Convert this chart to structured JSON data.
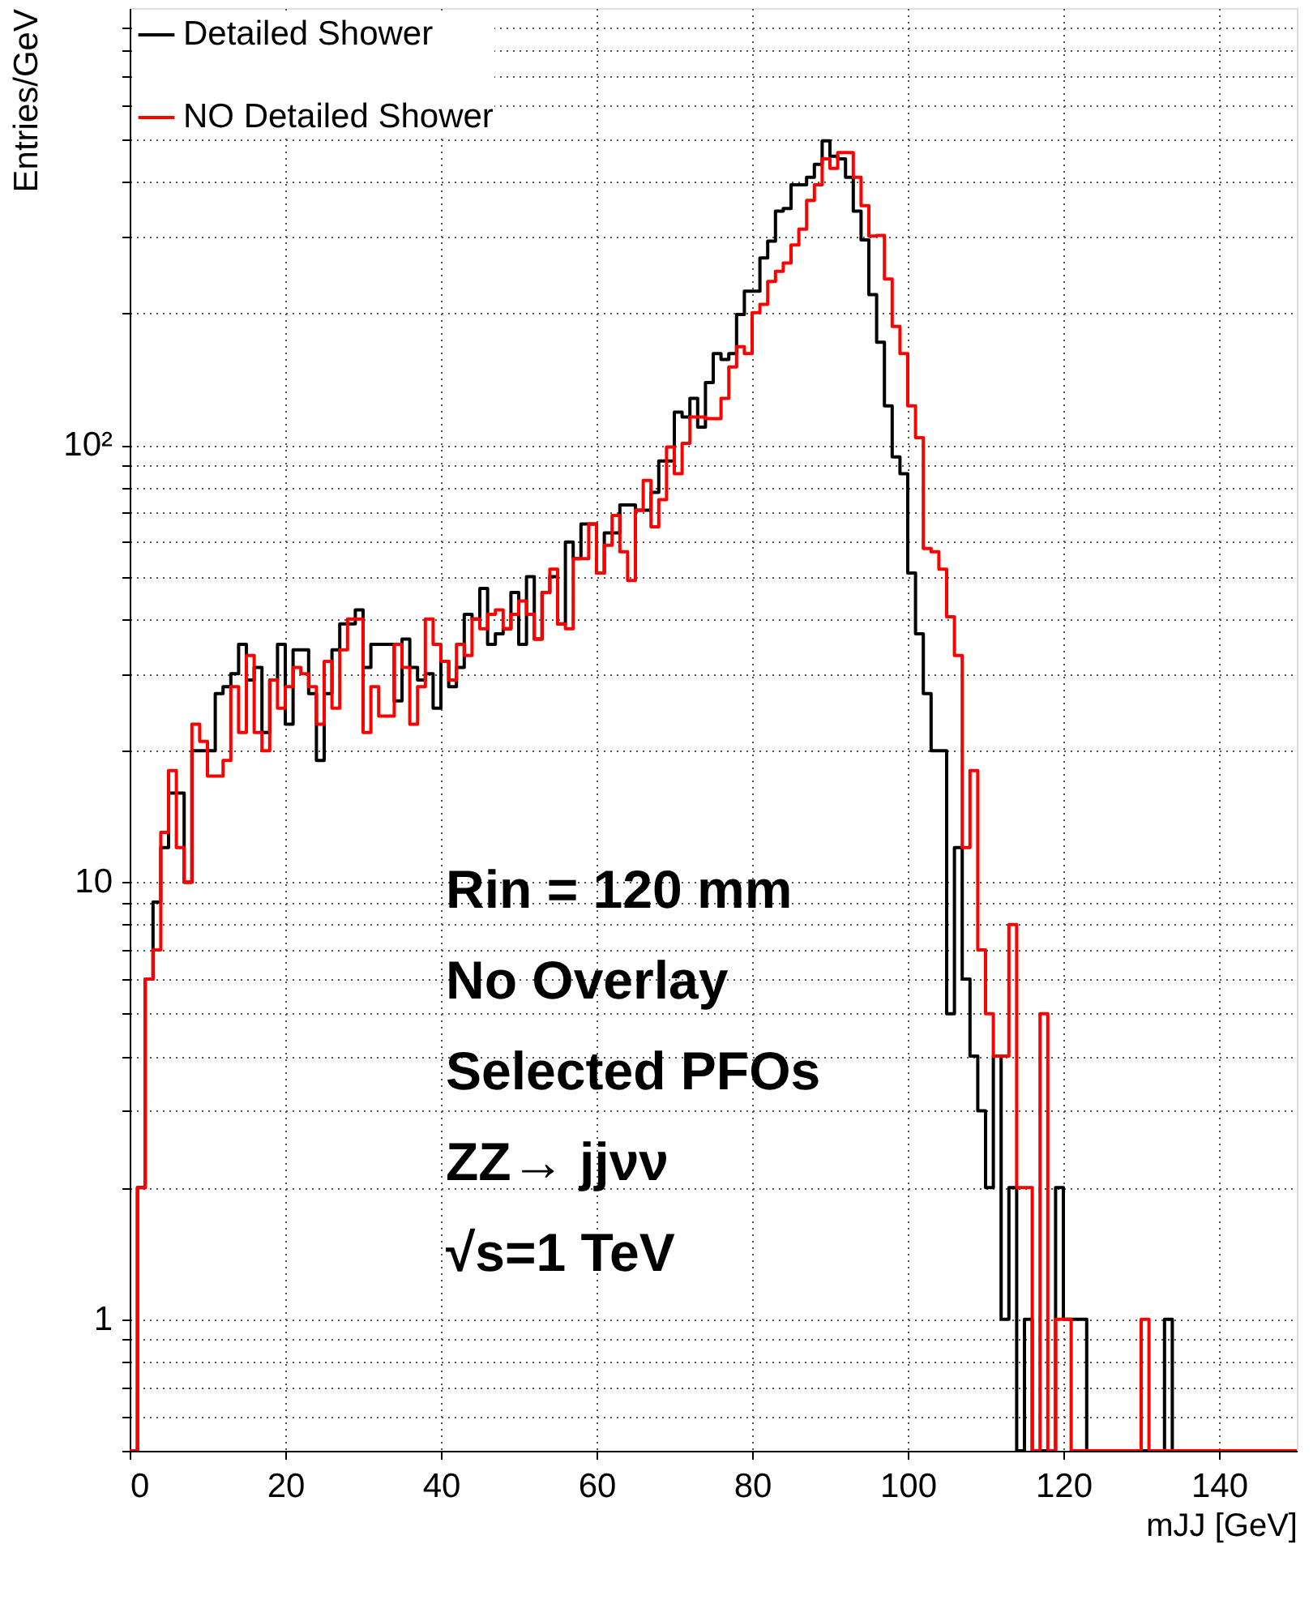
{
  "chart_data": {
    "type": "histogram",
    "xlabel": "mJJ [GeV]",
    "ylabel": "Entries/GeV",
    "bins": [
      0,
      1,
      2,
      3,
      4,
      5,
      6,
      7,
      8,
      9,
      10,
      11,
      12,
      13,
      14,
      15,
      16,
      17,
      18,
      19,
      20,
      21,
      22,
      23,
      24,
      25,
      26,
      27,
      28,
      29,
      30,
      31,
      32,
      33,
      34,
      35,
      36,
      37,
      38,
      39,
      40,
      41,
      42,
      43,
      44,
      45,
      46,
      47,
      48,
      49,
      50,
      51,
      52,
      53,
      54,
      55,
      56,
      57,
      58,
      59,
      60,
      61,
      62,
      63,
      64,
      65,
      66,
      67,
      68,
      69,
      70,
      71,
      72,
      73,
      74,
      75,
      76,
      77,
      78,
      79,
      80,
      81,
      82,
      83,
      84,
      85,
      86,
      87,
      88,
      89,
      90,
      91,
      92,
      93,
      94,
      95,
      96,
      97,
      98,
      99,
      100,
      101,
      102,
      103,
      104,
      105,
      106,
      107,
      108,
      109,
      110,
      111,
      112,
      113,
      114,
      115,
      116,
      117,
      118,
      119,
      120,
      121,
      122,
      123,
      124,
      125,
      126,
      127,
      128,
      129,
      130,
      131,
      132,
      133,
      134,
      135,
      136,
      137,
      138,
      139,
      140,
      141,
      142,
      143,
      144,
      145,
      146,
      147,
      148,
      149,
      150
    ],
    "series": [
      {
        "name": "Detailed Shower",
        "color": "#000000",
        "values": [
          null,
          2,
          6,
          9,
          12,
          16,
          16,
          10,
          20,
          20,
          20,
          27,
          28,
          30,
          35,
          29,
          31,
          22,
          29,
          35,
          23,
          34,
          34,
          27,
          19,
          27,
          34,
          39,
          39,
          42,
          31,
          35,
          35,
          35,
          26,
          36,
          31,
          29,
          30,
          25,
          32,
          28,
          31,
          41,
          40,
          47,
          35,
          37,
          38,
          46,
          35,
          50,
          36,
          46,
          50,
          39,
          60,
          55,
          66,
          66,
          51,
          63,
          63,
          73,
          73,
          71,
          71,
          78,
          92,
          92,
          119,
          116,
          128,
          110,
          139,
          162,
          157,
          162,
          199,
          225,
          225,
          268,
          293,
          343,
          348,
          394,
          394,
          410,
          439,
          497,
          458,
          452,
          410,
          343,
          295,
          221,
          172,
          123,
          94,
          86,
          51,
          37,
          27,
          20,
          20,
          5,
          12,
          6,
          4,
          3,
          2,
          4,
          1,
          2,
          null,
          1,
          null,
          null,
          null,
          2,
          1,
          1,
          1,
          null,
          null,
          null,
          null,
          null,
          null,
          null,
          null,
          null,
          null,
          1,
          null,
          null,
          null,
          null,
          null,
          null,
          null,
          null,
          null,
          null,
          null,
          null,
          null,
          null,
          null,
          null
        ]
      },
      {
        "name": "NO Detailed Shower",
        "color": "#ff0000",
        "values": [
          null,
          2,
          6,
          7,
          13,
          18,
          12,
          10,
          23,
          21,
          17.5,
          17.5,
          19,
          28,
          22,
          33,
          22,
          20,
          29,
          25,
          28,
          31,
          30,
          28,
          23,
          32,
          25,
          34,
          40,
          40,
          22,
          28,
          24,
          24,
          35,
          31,
          23,
          28,
          40,
          35,
          32,
          29,
          35,
          33,
          40,
          38,
          41,
          42,
          38,
          41,
          44,
          41,
          36,
          46,
          52,
          39,
          38,
          55,
          55,
          66,
          51,
          59,
          69,
          57,
          49,
          71,
          83,
          65,
          75,
          99,
          86,
          101,
          116,
          116,
          115,
          115,
          128,
          151,
          168,
          162,
          201,
          210,
          237,
          250,
          261,
          287,
          312,
          363,
          394,
          452,
          430,
          467,
          467,
          410,
          353,
          301,
          302,
          240,
          187,
          162,
          123,
          104,
          58,
          57,
          52,
          40.5,
          33,
          12,
          18,
          7,
          5,
          4,
          4,
          8,
          2,
          2,
          null,
          5,
          null,
          1,
          1,
          null,
          null,
          null,
          null,
          null,
          null,
          null,
          null,
          null,
          1,
          null,
          null,
          null,
          null,
          null,
          null,
          null,
          null,
          null,
          null,
          null,
          null,
          null,
          null,
          null,
          null,
          null,
          null,
          null
        ]
      }
    ],
    "xlim": [
      0,
      150
    ],
    "xticks": [
      0,
      20,
      40,
      60,
      80,
      100,
      120,
      140
    ],
    "ylim": [
      0.5,
      1000
    ],
    "log": "y",
    "yticks": [
      {
        "value": 0.5,
        "label": null
      },
      {
        "value": 0.6,
        "label": null
      },
      {
        "value": 0.7,
        "label": null
      },
      {
        "value": 0.8,
        "label": null
      },
      {
        "value": 0.9,
        "label": null
      },
      1,
      {
        "value": 2,
        "label": null
      },
      {
        "value": 3,
        "label": null
      },
      {
        "value": 4,
        "label": null
      },
      {
        "value": 5,
        "label": null
      },
      {
        "value": 6,
        "label": null
      },
      {
        "value": 7,
        "label": null
      },
      {
        "value": 8,
        "label": null
      },
      {
        "value": 9,
        "label": null
      },
      10,
      {
        "value": 20,
        "label": null
      },
      {
        "value": 30,
        "label": null
      },
      {
        "value": 40,
        "label": null
      },
      {
        "value": 50,
        "label": null
      },
      {
        "value": 60,
        "label": null
      },
      {
        "value": 70,
        "label": null
      },
      {
        "value": 80,
        "label": null
      },
      {
        "value": 90,
        "label": null
      },
      {
        "value": 100,
        "label": "10²"
      },
      {
        "value": 200,
        "label": null
      },
      {
        "value": 300,
        "label": null
      },
      {
        "value": 400,
        "label": null
      },
      {
        "value": 500,
        "label": null
      },
      {
        "value": 600,
        "label": null
      },
      {
        "value": 700,
        "label": null
      },
      {
        "value": 800,
        "label": null
      },
      {
        "value": 900,
        "label": null
      }
    ],
    "grid": true,
    "legend": "top left",
    "annotations": [
      "Rin = 120 mm",
      "No Overlay",
      "Selected PFOs",
      "ZZ→ jjνν",
      "√s=1 TeV"
    ]
  }
}
